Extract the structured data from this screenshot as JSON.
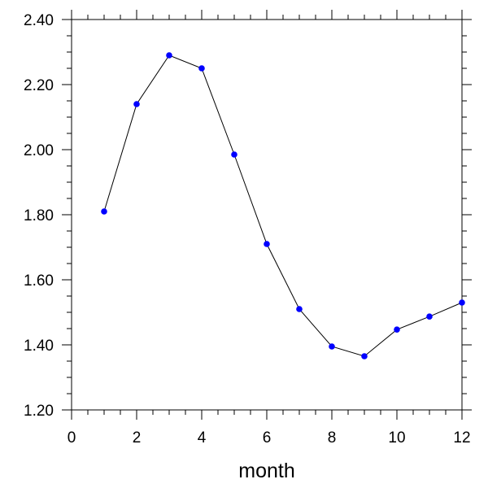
{
  "chart_data": {
    "type": "line",
    "title": "",
    "xlabel": "month",
    "ylabel": "",
    "xlim": [
      0,
      12
    ],
    "ylim": [
      1.2,
      2.4
    ],
    "x_ticks": [
      0,
      2,
      4,
      6,
      8,
      10,
      12
    ],
    "x_tick_labels": [
      "0",
      "2",
      "4",
      "6",
      "8",
      "10",
      "12"
    ],
    "y_ticks": [
      1.2,
      1.4,
      1.6,
      1.8,
      2.0,
      2.2,
      2.4
    ],
    "y_tick_labels": [
      "1.20",
      "1.40",
      "1.60",
      "1.80",
      "2.00",
      "2.20",
      "2.40"
    ],
    "grid": false,
    "line_color": "#000000",
    "marker_color": "#0000ff",
    "series": [
      {
        "x": [
          1,
          2,
          3,
          4,
          5,
          6,
          7,
          8,
          9,
          10,
          11,
          12
        ],
        "values": [
          1.81,
          2.14,
          2.29,
          2.25,
          1.985,
          1.71,
          1.51,
          1.395,
          1.365,
          1.447,
          1.487,
          1.53
        ]
      }
    ]
  }
}
